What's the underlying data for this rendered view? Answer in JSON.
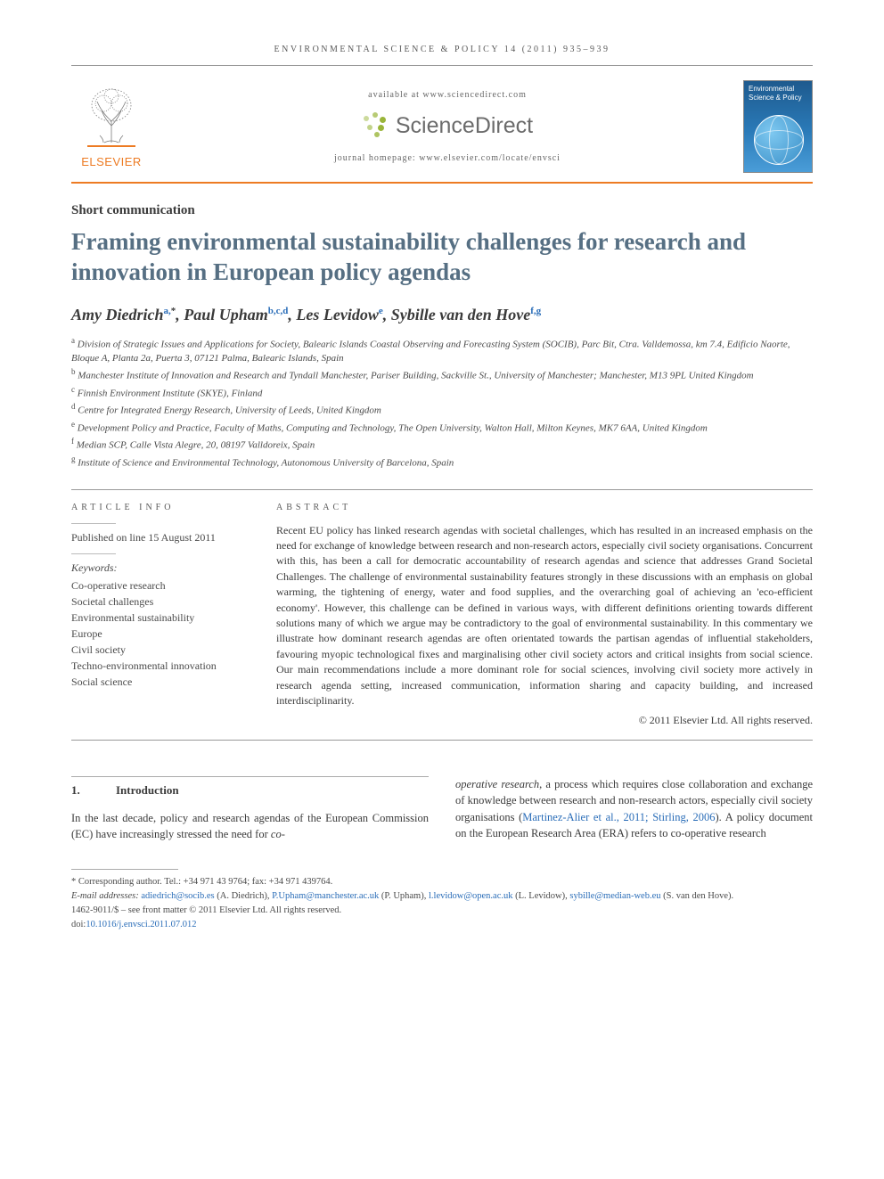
{
  "running_head": "ENVIRONMENTAL SCIENCE & POLICY 14 (2011) 935–939",
  "masthead": {
    "availability": "available at www.sciencedirect.com",
    "sd_brand": "ScienceDirect",
    "homepage_label": "journal homepage: www.elsevier.com/locate/envsci",
    "publisher": "ELSEVIER",
    "journal_cover_title": "Environmental Science & Policy"
  },
  "article": {
    "type": "Short communication",
    "title": "Framing environmental sustainability challenges for research and innovation in European policy agendas",
    "authors_html": "Amy Diedrich<sup class='cite'>a,</sup><sup class='star'>*</sup>, Paul Upham<sup class='cite'>b,c,d</sup>, Les Levidow<sup class='cite'>e</sup>, Sybille van den Hove<sup class='cite'>f,g</sup>",
    "affiliations": [
      "a Division of Strategic Issues and Applications for Society, Balearic Islands Coastal Observing and Forecasting System (SOCIB), Parc Bit, Ctra. Valldemossa, km 7.4, Edificio Naorte, Bloque A, Planta 2a, Puerta 3, 07121 Palma, Balearic Islands, Spain",
      "b Manchester Institute of Innovation and Research and Tyndall Manchester, Pariser Building, Sackville St., University of Manchester; Manchester, M13 9PL United Kingdom",
      "c Finnish Environment Institute (SKYE), Finland",
      "d Centre for Integrated Energy Research, University of Leeds, United Kingdom",
      "e Development Policy and Practice, Faculty of Maths, Computing and Technology, The Open University, Walton Hall, Milton Keynes, MK7 6AA, United Kingdom",
      "f Median SCP, Calle Vista Alegre, 20, 08197 Valldoreix, Spain",
      "g Institute of Science and Environmental Technology, Autonomous University of Barcelona, Spain"
    ]
  },
  "info": {
    "section_label": "ARTICLE INFO",
    "published_line": "Published on line 15 August 2011",
    "keywords_label": "Keywords:",
    "keywords": [
      "Co-operative research",
      "Societal challenges",
      "Environmental sustainability",
      "Europe",
      "Civil society",
      "Techno-environmental innovation",
      "Social science"
    ]
  },
  "abstract": {
    "section_label": "ABSTRACT",
    "text": "Recent EU policy has linked research agendas with societal challenges, which has resulted in an increased emphasis on the need for exchange of knowledge between research and non-research actors, especially civil society organisations. Concurrent with this, has been a call for democratic accountability of research agendas and science that addresses Grand Societal Challenges. The challenge of environmental sustainability features strongly in these discussions with an emphasis on global warming, the tightening of energy, water and food supplies, and the overarching goal of achieving an 'eco-efficient economy'. However, this challenge can be defined in various ways, with different definitions orienting towards different solutions many of which we argue may be contradictory to the goal of environmental sustainability. In this commentary we illustrate how dominant research agendas are often orientated towards the partisan agendas of influential stakeholders, favouring myopic technological fixes and marginalising other civil society actors and critical insights from social science. Our main recommendations include a more dominant role for social sciences, involving civil society more actively in research agenda setting, increased communication, information sharing and capacity building, and increased interdisciplinarity.",
    "copyright": "© 2011 Elsevier Ltd. All rights reserved."
  },
  "body": {
    "heading_number": "1.",
    "heading_text": "Introduction",
    "col1": "In the last decade, policy and research agendas of the European Commission (EC) have increasingly stressed the need for <span class='ital'>co-</span>",
    "col2": "<span class='ital'>operative research</span>, a process which requires close collaboration and exchange of knowledge between research and non-research actors, especially civil society organisations (<span class='cite'>Martinez-Alier et al., 2011; Stirling, 2006</span>). A policy document on the European Research Area (ERA) refers to co-operative research"
  },
  "footnotes": {
    "corresponding": "* Corresponding author. Tel.: +34 971 43 9764; fax: +34 971 439764.",
    "emails_label": "E-mail addresses:",
    "emails": [
      {
        "addr": "adiedrich@socib.es",
        "who": "(A. Diedrich)"
      },
      {
        "addr": "P.Upham@manchester.ac.uk",
        "who": "(P. Upham)"
      },
      {
        "addr": "l.levidow@open.ac.uk",
        "who": "(L. Levidow)"
      },
      {
        "addr": "sybille@median-web.eu",
        "who": "(S. van den Hove)."
      }
    ],
    "front_matter": "1462-9011/$ – see front matter © 2011 Elsevier Ltd. All rights reserved.",
    "doi_label": "doi:",
    "doi": "10.1016/j.envsci.2011.07.012"
  },
  "colors": {
    "accent_orange": "#ed7b23",
    "heading_blue": "#566f83",
    "link_blue": "#2a6db8",
    "sd_green": "#9ab53a",
    "text": "#3a3a3a"
  }
}
